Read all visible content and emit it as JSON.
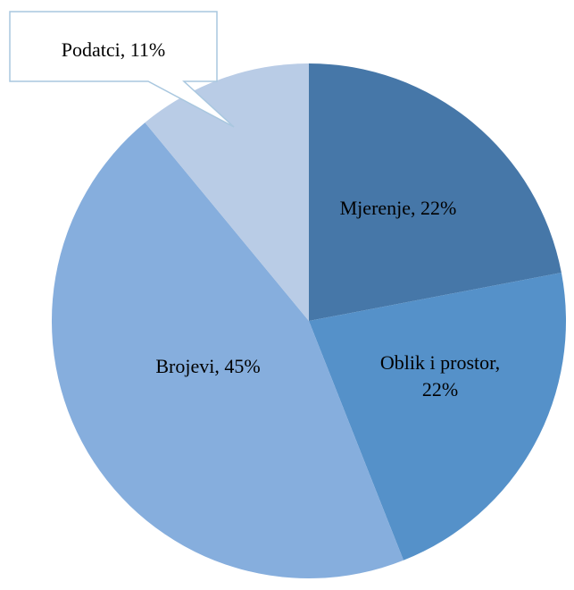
{
  "chart_data": {
    "type": "pie",
    "start_angle_deg": 0,
    "direction": "clockwise",
    "slices": [
      {
        "label": "Mjerenje",
        "value": 22,
        "value_text": "22%",
        "color": "#4677a8",
        "label_lines": [
          "Mjerenje,  22%"
        ]
      },
      {
        "label": "Oblik i prostor",
        "value": 22,
        "value_text": "22%",
        "color": "#5591c9",
        "label_lines": [
          "Oblik i prostor,",
          "22%"
        ]
      },
      {
        "label": "Brojevi",
        "value": 45,
        "value_text": "45%",
        "color": "#86aedd",
        "label_lines": [
          "Brojevi,  45%"
        ]
      },
      {
        "label": "Podatci",
        "value": 11,
        "value_text": "11%",
        "color": "#b9cce6",
        "label_lines": [
          "Podatci, 11%"
        ],
        "callout": true
      }
    ],
    "title": "",
    "legend": "none"
  }
}
